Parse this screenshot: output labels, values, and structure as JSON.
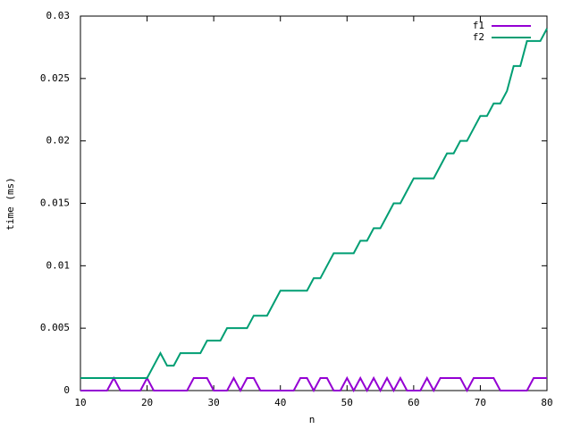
{
  "chart_data": {
    "type": "line",
    "xlabel": "n",
    "ylabel": "time (ms)",
    "x": [
      10,
      11,
      12,
      13,
      14,
      15,
      16,
      17,
      18,
      19,
      20,
      21,
      22,
      23,
      24,
      25,
      26,
      27,
      28,
      29,
      30,
      31,
      32,
      33,
      34,
      35,
      36,
      37,
      38,
      39,
      40,
      41,
      42,
      43,
      44,
      45,
      46,
      47,
      48,
      49,
      50,
      51,
      52,
      53,
      54,
      55,
      56,
      57,
      58,
      59,
      60,
      61,
      62,
      63,
      64,
      65,
      66,
      67,
      68,
      69,
      70,
      71,
      72,
      73,
      74,
      75,
      76,
      77,
      78,
      79,
      80
    ],
    "series": [
      {
        "name": "f1",
        "color": "#9400d3",
        "values": [
          0,
          0,
          0,
          0,
          0,
          0.001,
          0,
          0,
          0,
          0,
          0.001,
          0,
          0,
          0,
          0,
          0,
          0,
          0.001,
          0.001,
          0.001,
          0,
          0,
          0,
          0.001,
          0,
          0.001,
          0.001,
          0,
          0,
          0,
          0,
          0,
          0,
          0.001,
          0.001,
          0,
          0.001,
          0.001,
          0,
          0,
          0.001,
          0,
          0.001,
          0,
          0.001,
          0,
          0.001,
          0,
          0.001,
          0,
          0,
          0,
          0.001,
          0,
          0.001,
          0.001,
          0.001,
          0.001,
          0,
          0.001,
          0.001,
          0.001,
          0.001,
          0,
          0,
          0,
          0,
          0,
          0.001,
          0.001,
          0.001
        ]
      },
      {
        "name": "f2",
        "color": "#009e73",
        "values": [
          0.001,
          0.001,
          0.001,
          0.001,
          0.001,
          0.001,
          0.001,
          0.001,
          0.001,
          0.001,
          0.001,
          0.002,
          0.003,
          0.002,
          0.002,
          0.003,
          0.003,
          0.003,
          0.003,
          0.004,
          0.004,
          0.004,
          0.005,
          0.005,
          0.005,
          0.005,
          0.006,
          0.006,
          0.006,
          0.007,
          0.008,
          0.008,
          0.008,
          0.008,
          0.008,
          0.009,
          0.009,
          0.01,
          0.011,
          0.011,
          0.011,
          0.011,
          0.012,
          0.012,
          0.013,
          0.013,
          0.014,
          0.015,
          0.015,
          0.016,
          0.017,
          0.017,
          0.017,
          0.017,
          0.018,
          0.019,
          0.019,
          0.02,
          0.02,
          0.021,
          0.022,
          0.022,
          0.023,
          0.023,
          0.024,
          0.026,
          0.026,
          0.028,
          0.028,
          0.028,
          0.029
        ]
      }
    ],
    "xlim": [
      10,
      80
    ],
    "xticks": [
      10,
      20,
      30,
      40,
      50,
      60,
      70,
      80
    ],
    "ylim": [
      0,
      0.03
    ],
    "yticks": [
      0,
      0.005,
      0.01,
      0.015,
      0.02,
      0.025,
      0.03
    ],
    "legend": "top-right"
  }
}
